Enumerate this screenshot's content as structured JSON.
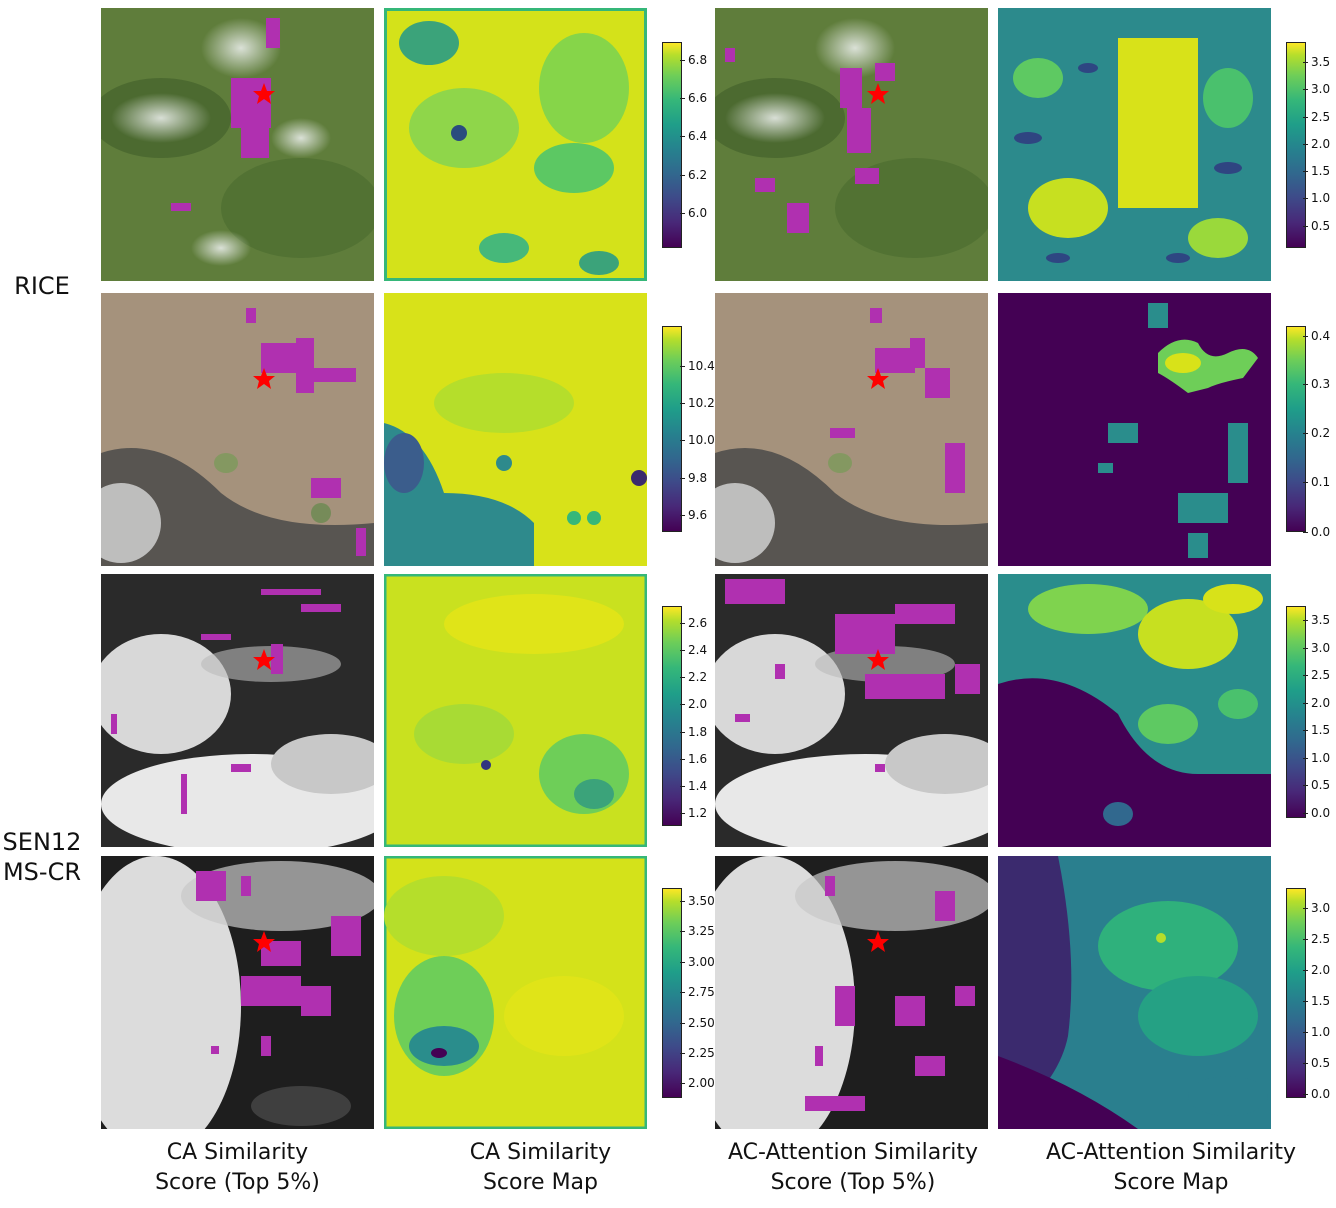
{
  "row_labels": {
    "rice": "RICE",
    "sen12_line1": "SEN12",
    "sen12_line2": "MS-CR"
  },
  "column_labels": [
    {
      "line1": "CA Similarity",
      "line2": "Score (Top 5%)"
    },
    {
      "line1": "CA Similarity",
      "line2": "Score Map"
    },
    {
      "line1": "AC-Attention Similarity",
      "line2": "Score (Top 5%)"
    },
    {
      "line1": "AC-Attention Similarity",
      "line2": "Score Map"
    }
  ],
  "colorbars": {
    "row1_ca": [
      "6.8",
      "6.6",
      "6.4",
      "6.2",
      "6.0"
    ],
    "row1_ac": [
      "3.5",
      "3.0",
      "2.5",
      "2.0",
      "1.5",
      "1.0",
      "0.5"
    ],
    "row2_ca": [
      "10.4",
      "10.2",
      "10.0",
      "9.8",
      "9.6"
    ],
    "row2_ac": [
      "0.4",
      "0.3",
      "0.2",
      "0.1",
      "0.0"
    ],
    "row3_ca": [
      "2.6",
      "2.4",
      "2.2",
      "2.0",
      "1.8",
      "1.6",
      "1.4",
      "1.2"
    ],
    "row3_ac": [
      "3.5",
      "3.0",
      "2.5",
      "2.0",
      "1.5",
      "1.0",
      "0.5",
      "0.0"
    ],
    "row4_ca": [
      "3.50",
      "3.25",
      "3.00",
      "2.75",
      "2.50",
      "2.25",
      "2.00"
    ],
    "row4_ac": [
      "3.0",
      "2.5",
      "2.0",
      "1.5",
      "1.0",
      "0.5",
      "0.0"
    ]
  },
  "colors": {
    "top5_marker": "#b030b0",
    "query_star": "#ff0000",
    "colormap": [
      "#440154",
      "#3e4a89",
      "#26828e",
      "#35b779",
      "#b5de2b",
      "#fde725"
    ]
  }
}
